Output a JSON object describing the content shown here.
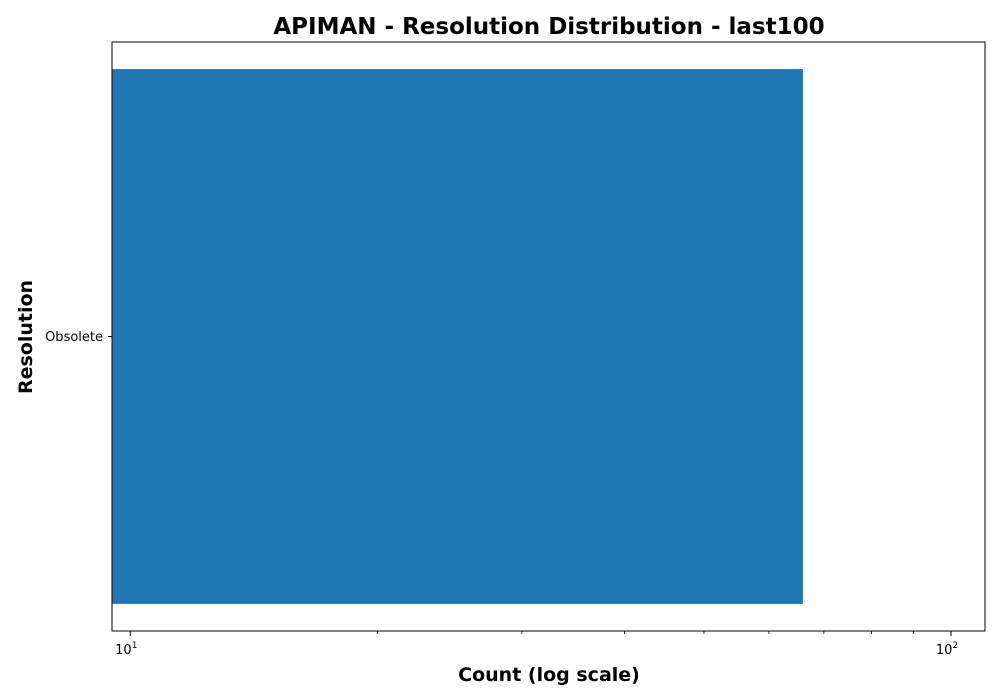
{
  "chart_data": {
    "type": "bar",
    "orientation": "horizontal",
    "title": "APIMAN - Resolution Distribution - last100",
    "xlabel": "Count (log scale)",
    "ylabel": "Resolution",
    "x_scale": "log",
    "xlim": [
      9.5,
      110
    ],
    "x_ticks": [
      {
        "value": 10,
        "base": "10",
        "exp": "1"
      },
      {
        "value": 100,
        "base": "10",
        "exp": "2"
      }
    ],
    "categories": [
      "Obsolete"
    ],
    "values": [
      66
    ],
    "bar_color": "#1f77b4",
    "grid": false,
    "legend": "none"
  }
}
